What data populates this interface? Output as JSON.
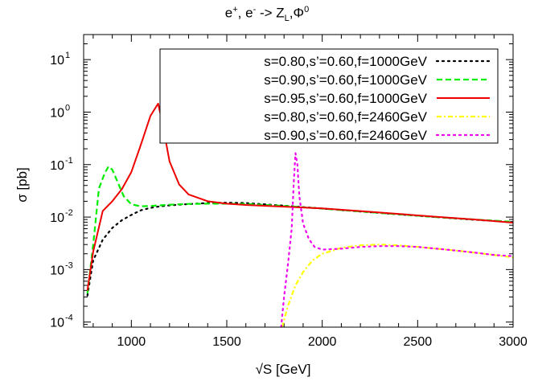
{
  "chart_data": {
    "type": "line",
    "title": "e+, e- -> ZL,Φ0",
    "title_parts": {
      "t1": "e",
      "t1_sup": "+",
      "t2": ", e",
      "t2_sup": "-",
      "t3": " -> Z",
      "t3_sub": "L",
      "t4": ",Φ",
      "t4_sup": "0"
    },
    "xlabel": "√S [GeV]",
    "ylabel": "σ [pb]",
    "xlim": [
      750,
      3000
    ],
    "ylim": [
      8e-05,
      30
    ],
    "yscale": "log",
    "xticks": [
      1000,
      1500,
      2000,
      2500,
      3000
    ],
    "xtick_labels": [
      "1000",
      "1500",
      "2000",
      "2500",
      "3000"
    ],
    "yticks": [
      0.0001,
      0.001,
      0.01,
      0.1,
      1,
      10
    ],
    "ytick_labels": [
      {
        "base": "10",
        "exp": "-4"
      },
      {
        "base": "10",
        "exp": "-3"
      },
      {
        "base": "10",
        "exp": "-2"
      },
      {
        "base": "10",
        "exp": "-1"
      },
      {
        "base": "10",
        "exp": "0"
      },
      {
        "base": "10",
        "exp": "1"
      }
    ],
    "grid": false,
    "legend_position": "top-right",
    "series": [
      {
        "name": "s=0.80,s’=0.60,f=1000GeV",
        "color": "#000000",
        "style": "dotted",
        "x": [
          770,
          800,
          850,
          900,
          950,
          1000,
          1050,
          1100,
          1150,
          1200,
          1250,
          1300,
          1400,
          1500,
          1600,
          1800,
          2000,
          2200,
          2400,
          2600,
          2800,
          3000
        ],
        "y": [
          0.00032,
          0.0015,
          0.0037,
          0.0062,
          0.0087,
          0.011,
          0.0135,
          0.015,
          0.016,
          0.0167,
          0.0172,
          0.0177,
          0.0185,
          0.0188,
          0.0185,
          0.0165,
          0.0145,
          0.0128,
          0.0113,
          0.01,
          0.0089,
          0.008
        ]
      },
      {
        "name": "s=0.90,s’=0.60,f=1000GeV",
        "color": "#00ee00",
        "style": "dashed",
        "x": [
          770,
          800,
          830,
          860,
          880,
          900,
          930,
          960,
          1000,
          1050,
          1100,
          1150,
          1200,
          1300,
          1400,
          1500,
          1600,
          1800,
          2000,
          2200,
          2400,
          2600,
          2800,
          3000
        ],
        "y": [
          0.00035,
          0.003,
          0.035,
          0.068,
          0.092,
          0.08,
          0.045,
          0.025,
          0.0175,
          0.016,
          0.0163,
          0.0167,
          0.0172,
          0.0178,
          0.018,
          0.018,
          0.0178,
          0.0163,
          0.0145,
          0.0128,
          0.0113,
          0.01,
          0.009,
          0.0081
        ]
      },
      {
        "name": "s=0.95,s’=0.60,f=1000GeV",
        "color": "#ee0000",
        "style": "solid",
        "x": [
          770,
          800,
          850,
          900,
          950,
          1000,
          1050,
          1100,
          1140,
          1160,
          1200,
          1250,
          1300,
          1400,
          1500,
          1600,
          1800,
          2000,
          2200,
          2400,
          2600,
          2800,
          3000
        ],
        "y": [
          0.0004,
          0.0022,
          0.013,
          0.02,
          0.034,
          0.072,
          0.24,
          0.85,
          1.45,
          0.7,
          0.115,
          0.042,
          0.027,
          0.02,
          0.018,
          0.017,
          0.0158,
          0.0146,
          0.013,
          0.0115,
          0.0101,
          0.009,
          0.0078
        ]
      },
      {
        "name": "s=0.80,s’=0.60,f=2460GeV",
        "color": "#ffff00",
        "style": "dash-dot",
        "x": [
          1790,
          1820,
          1860,
          1900,
          1950,
          2000,
          2100,
          2200,
          2300,
          2400,
          2500,
          2600,
          2700,
          2800,
          2900,
          3000
        ],
        "y": [
          8e-05,
          0.0002,
          0.0005,
          0.0009,
          0.0015,
          0.002,
          0.0026,
          0.0029,
          0.003,
          0.0029,
          0.0027,
          0.0025,
          0.0023,
          0.0021,
          0.0019,
          0.0017
        ]
      },
      {
        "name": "s=0.90,s’=0.60,f=2460GeV",
        "color": "#ee00ee",
        "style": "dotted",
        "x": [
          1785,
          1800,
          1820,
          1840,
          1850,
          1860,
          1870,
          1880,
          1900,
          1930,
          1960,
          2000,
          2100,
          2200,
          2300,
          2400,
          2500,
          2600,
          2700,
          2800,
          2900,
          3000
        ],
        "y": [
          8e-05,
          0.0003,
          0.0012,
          0.006,
          0.04,
          0.165,
          0.1,
          0.025,
          0.0075,
          0.0038,
          0.0027,
          0.0024,
          0.0025,
          0.0027,
          0.0028,
          0.0028,
          0.0027,
          0.0025,
          0.0023,
          0.0021,
          0.0019,
          0.0018
        ]
      }
    ]
  }
}
